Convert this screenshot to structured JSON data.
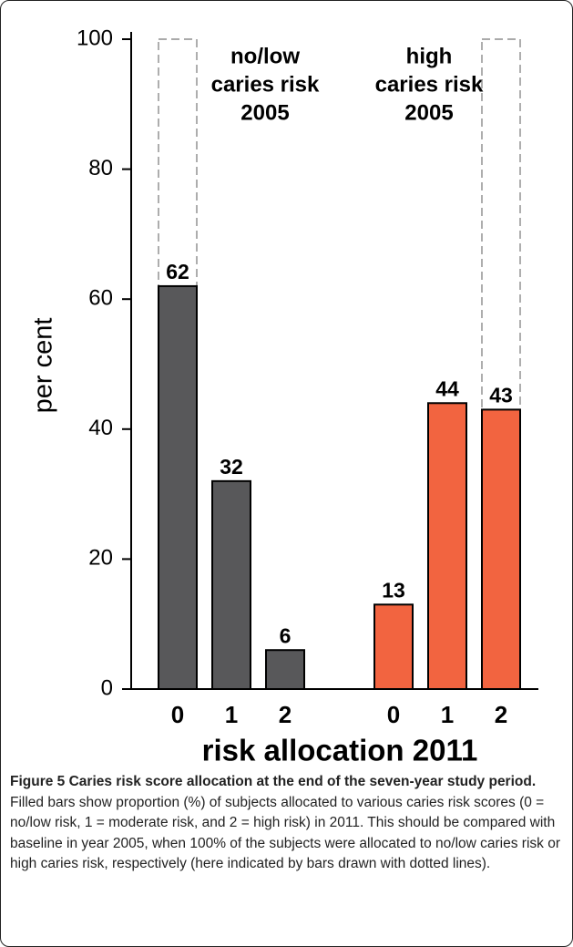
{
  "chart_data": {
    "type": "bar",
    "ylabel": "per cent",
    "xlabel": "risk allocation 2011",
    "ylim": [
      0,
      100
    ],
    "yticks": [
      0,
      20,
      40,
      60,
      80,
      100
    ],
    "groups": [
      {
        "label": [
          "no/low",
          "caries risk",
          "2005"
        ],
        "color": "#58585a",
        "categories": [
          "0",
          "1",
          "2"
        ],
        "values": [
          62,
          32,
          6
        ],
        "baseline_values": [
          100,
          null,
          null
        ]
      },
      {
        "label": [
          "high",
          "caries risk",
          "2005"
        ],
        "color": "#f26440",
        "categories": [
          "0",
          "1",
          "2"
        ],
        "values": [
          13,
          44,
          43
        ],
        "baseline_values": [
          null,
          null,
          100
        ]
      }
    ]
  },
  "caption": {
    "label": "Figure 5",
    "title": "Caries risk score allocation at the end of the seven-year study period.",
    "text": "Filled bars show proportion (%) of subjects allocated to various caries risk scores (0 = no/low risk, 1 = moderate risk, and 2 = high risk) in 2011. This should be compared with baseline in year 2005, when 100% of the subjects were allocated to no/low caries risk or high caries risk, respectively (here indicated by bars drawn with dotted lines)."
  }
}
